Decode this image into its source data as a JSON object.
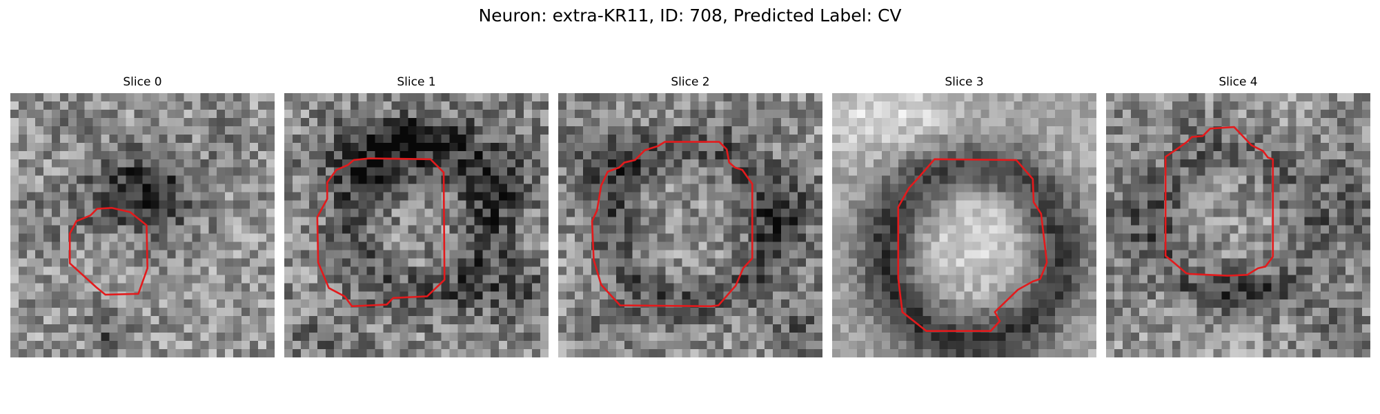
{
  "figure": {
    "suptitle": "Neuron: extra-KR11, ID: 708, Predicted Label: CV"
  },
  "panels": [
    {
      "title": "Slice 0"
    },
    {
      "title": "Slice 1"
    },
    {
      "title": "Slice 2"
    },
    {
      "title": "Slice 3"
    },
    {
      "title": "Slice 4"
    }
  ],
  "colors": {
    "contour": "#e31a1c",
    "background": "#ffffff"
  },
  "image": {
    "colormap": "grayscale"
  }
}
